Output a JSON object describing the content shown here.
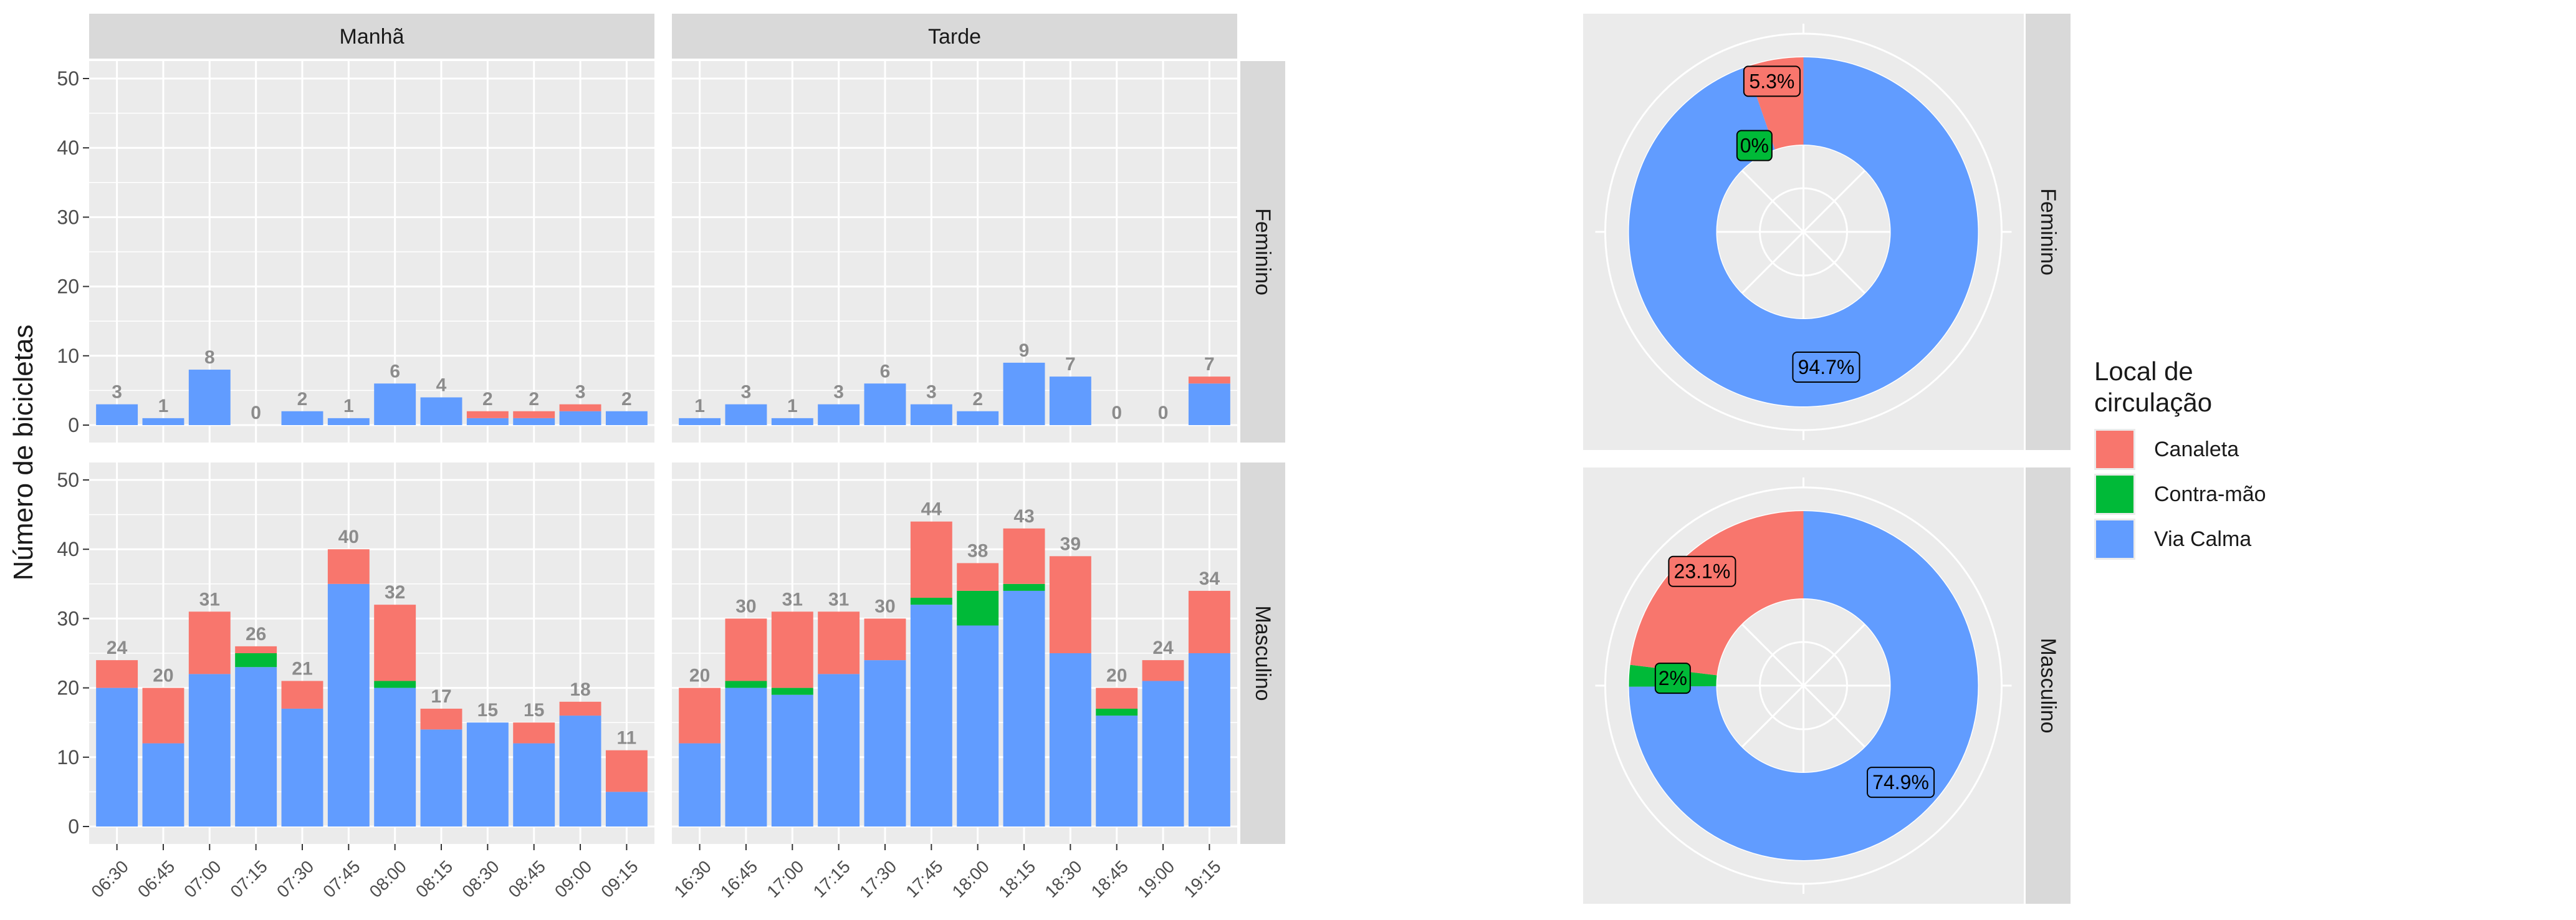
{
  "chart_data": [
    {
      "type": "bar",
      "stacked": true,
      "ylabel": "Número de bicicletas",
      "ylim": [
        0,
        50
      ],
      "yticks": [
        0,
        10,
        20,
        30,
        40,
        50
      ],
      "grid": true,
      "facet_columns": [
        "Manhã",
        "Tarde"
      ],
      "facet_rows": [
        "Feminino",
        "Masculino"
      ],
      "series_names": [
        "Canaleta",
        "Contra-mão",
        "Via Calma"
      ],
      "panels": [
        {
          "column": "Manhã",
          "row": "Feminino",
          "categories": [
            "06:30",
            "06:45",
            "07:00",
            "07:15",
            "07:30",
            "07:45",
            "08:00",
            "08:15",
            "08:30",
            "08:45",
            "09:00",
            "09:15"
          ],
          "series": [
            {
              "name": "Via Calma",
              "values": [
                3,
                1,
                8,
                0,
                2,
                1,
                6,
                4,
                1,
                1,
                2,
                2
              ]
            },
            {
              "name": "Contra-mão",
              "values": [
                0,
                0,
                0,
                0,
                0,
                0,
                0,
                0,
                0,
                0,
                0,
                0
              ]
            },
            {
              "name": "Canaleta",
              "values": [
                0,
                0,
                0,
                0,
                0,
                0,
                0,
                0,
                1,
                1,
                1,
                0
              ]
            }
          ],
          "totals": [
            3,
            1,
            8,
            0,
            2,
            1,
            6,
            4,
            2,
            2,
            3,
            2
          ]
        },
        {
          "column": "Tarde",
          "row": "Feminino",
          "categories": [
            "16:30",
            "16:45",
            "17:00",
            "17:15",
            "17:30",
            "17:45",
            "18:00",
            "18:15",
            "18:30",
            "18:45",
            "19:00",
            "19:15"
          ],
          "series": [
            {
              "name": "Via Calma",
              "values": [
                1,
                3,
                1,
                3,
                6,
                3,
                2,
                9,
                7,
                0,
                0,
                6
              ]
            },
            {
              "name": "Contra-mão",
              "values": [
                0,
                0,
                0,
                0,
                0,
                0,
                0,
                0,
                0,
                0,
                0,
                0
              ]
            },
            {
              "name": "Canaleta",
              "values": [
                0,
                0,
                0,
                0,
                0,
                0,
                0,
                0,
                0,
                0,
                0,
                1
              ]
            }
          ],
          "totals": [
            1,
            3,
            1,
            3,
            6,
            3,
            2,
            9,
            7,
            0,
            0,
            7
          ]
        },
        {
          "column": "Manhã",
          "row": "Masculino",
          "categories": [
            "06:30",
            "06:45",
            "07:00",
            "07:15",
            "07:30",
            "07:45",
            "08:00",
            "08:15",
            "08:30",
            "08:45",
            "09:00",
            "09:15"
          ],
          "series": [
            {
              "name": "Via Calma",
              "values": [
                20,
                12,
                22,
                23,
                17,
                35,
                20,
                14,
                15,
                12,
                16,
                5
              ]
            },
            {
              "name": "Contra-mão",
              "values": [
                0,
                0,
                0,
                2,
                0,
                0,
                1,
                0,
                0,
                0,
                0,
                0
              ]
            },
            {
              "name": "Canaleta",
              "values": [
                4,
                8,
                9,
                1,
                4,
                5,
                11,
                3,
                0,
                3,
                2,
                6
              ]
            }
          ],
          "totals": [
            24,
            20,
            31,
            26,
            21,
            40,
            32,
            17,
            15,
            15,
            18,
            11
          ]
        },
        {
          "column": "Tarde",
          "row": "Masculino",
          "categories": [
            "16:30",
            "16:45",
            "17:00",
            "17:15",
            "17:30",
            "17:45",
            "18:00",
            "18:15",
            "18:30",
            "18:45",
            "19:00",
            "19:15"
          ],
          "series": [
            {
              "name": "Via Calma",
              "values": [
                12,
                20,
                19,
                22,
                24,
                32,
                29,
                34,
                25,
                16,
                21,
                25
              ]
            },
            {
              "name": "Contra-mão",
              "values": [
                0,
                1,
                1,
                0,
                0,
                1,
                5,
                1,
                0,
                1,
                0,
                0
              ]
            },
            {
              "name": "Canaleta",
              "values": [
                8,
                9,
                11,
                9,
                6,
                11,
                4,
                8,
                14,
                3,
                3,
                9
              ]
            }
          ],
          "totals": [
            20,
            30,
            31,
            31,
            30,
            44,
            38,
            43,
            39,
            20,
            24,
            34
          ]
        }
      ]
    },
    {
      "type": "pie",
      "donut": true,
      "facet_rows": [
        "Feminino",
        "Masculino"
      ],
      "panels": [
        {
          "row": "Feminino",
          "slices": [
            {
              "name": "Canaleta",
              "value": 5.3,
              "label": "5.3%"
            },
            {
              "name": "Contra-mão",
              "value": 0,
              "label": "0%"
            },
            {
              "name": "Via Calma",
              "value": 94.7,
              "label": "94.7%"
            }
          ]
        },
        {
          "row": "Masculino",
          "slices": [
            {
              "name": "Canaleta",
              "value": 23.1,
              "label": "23.1%"
            },
            {
              "name": "Contra-mão",
              "value": 2,
              "label": "2%"
            },
            {
              "name": "Via Calma",
              "value": 74.9,
              "label": "74.9%"
            }
          ]
        }
      ]
    }
  ],
  "legend": {
    "title": "Local de\n circulação",
    "position": "right",
    "items": [
      {
        "name": "Canaleta",
        "color": "#F8766D"
      },
      {
        "name": "Contra-mão",
        "color": "#00BA38"
      },
      {
        "name": "Via Calma",
        "color": "#619CFF"
      }
    ]
  },
  "colors": {
    "Canaleta": "#F8766D",
    "Contra-mão": "#00BA38",
    "Via Calma": "#619CFF",
    "panel_bg": "#EBEBEB",
    "strip_bg": "#D9D9D9",
    "grid": "#FFFFFF",
    "total_label": "#8C8C8C"
  }
}
